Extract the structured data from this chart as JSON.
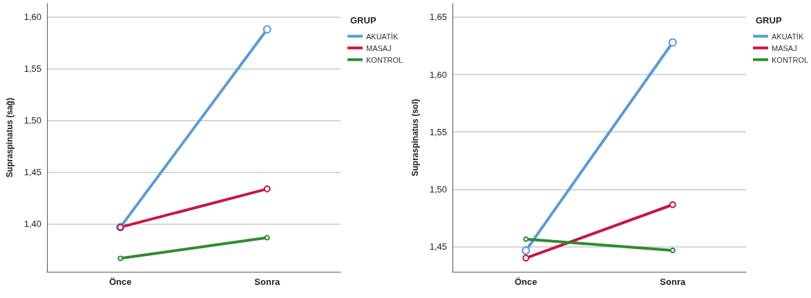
{
  "chart_data": [
    {
      "type": "line",
      "ylabel": "Supraspinatus (sağ)",
      "legend_title": "GRUP",
      "categories": [
        "Önce",
        "Sonra"
      ],
      "series": [
        {
          "name": "AKUATİK",
          "color": "#5b9bd5",
          "values": [
            1.397,
            1.588
          ]
        },
        {
          "name": "MASAJ",
          "color": "#c8163f",
          "values": [
            1.397,
            1.434
          ]
        },
        {
          "name": "KONTROL",
          "color": "#2e8b2e",
          "values": [
            1.367,
            1.387
          ]
        }
      ],
      "ylim": [
        1.354,
        1.613
      ],
      "yticks": [
        {
          "value": 1.4,
          "label": "1,40"
        },
        {
          "value": 1.45,
          "label": "1,45"
        },
        {
          "value": 1.5,
          "label": "1,50"
        },
        {
          "value": 1.55,
          "label": "1,55"
        },
        {
          "value": 1.6,
          "label": "1,60"
        }
      ],
      "grid": "y",
      "legend": "top right",
      "marker": "circle",
      "line_style": "solid"
    },
    {
      "type": "line",
      "ylabel": "Supraspinatus (sol)",
      "legend_title": "GRUP",
      "categories": [
        "Önce",
        "Sonra"
      ],
      "series": [
        {
          "name": "AKUATİK",
          "color": "#5b9bd5",
          "values": [
            1.4465,
            1.628
          ]
        },
        {
          "name": "MASAJ",
          "color": "#c8163f",
          "values": [
            1.44,
            1.4865
          ]
        },
        {
          "name": "KONTROL",
          "color": "#2e8b2e",
          "values": [
            1.4565,
            1.4467
          ]
        }
      ],
      "ylim": [
        1.428,
        1.662
      ],
      "yticks": [
        {
          "value": 1.45,
          "label": "1,45"
        },
        {
          "value": 1.5,
          "label": "1,50"
        },
        {
          "value": 1.55,
          "label": "1,55"
        },
        {
          "value": 1.6,
          "label": "1,60"
        },
        {
          "value": 1.65,
          "label": "1,65"
        }
      ],
      "grid": "y",
      "legend": "top right",
      "marker": "circle",
      "line_style": "solid"
    }
  ]
}
